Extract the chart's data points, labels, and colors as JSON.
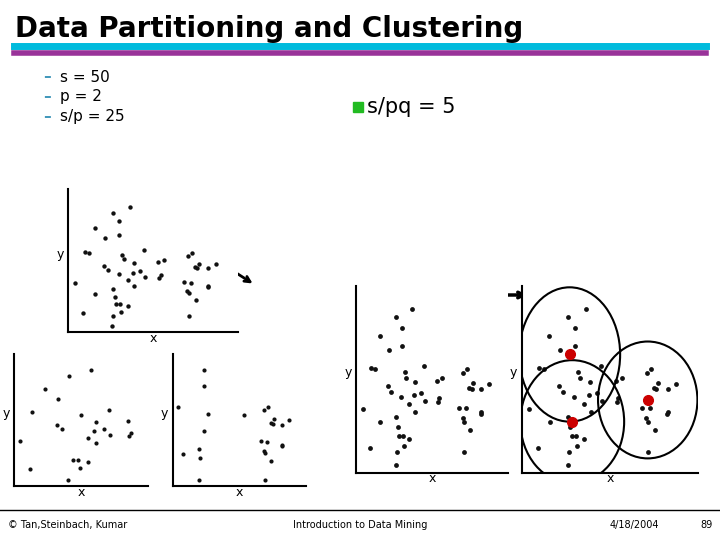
{
  "title": "Data Partitioning and Clustering",
  "title_fontsize": 20,
  "title_fontweight": "bold",
  "bg_color": "#ffffff",
  "header_line1_color": "#00BBDD",
  "header_line2_color": "#993399",
  "bullet_items": [
    "s = 50",
    "p = 2",
    "s/p = 25"
  ],
  "bullet_color": "#4499BB",
  "legend_text": "s/pq = 5",
  "legend_dot_color": "#22BB22",
  "footer_left": "© Tan,Steinbach, Kumar",
  "footer_center": "Introduction to Data Mining",
  "footer_right": "4/18/2004",
  "footer_page": "89",
  "dot_color": "#111111",
  "red_color": "#CC0000"
}
